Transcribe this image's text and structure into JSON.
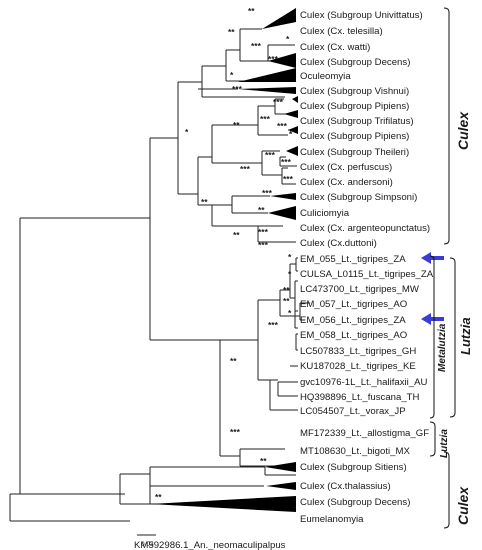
{
  "tree": {
    "taxa": {
      "t01": "Culex (Subgroup Univittatus)",
      "t02": "Culex (Cx. telesilla)",
      "t03": "Culex (Cx. watti)",
      "t04": "Culex (Subgroup Decens)",
      "t05": "Oculeomyia",
      "t06": "Culex (Subgroup Vishnui)",
      "t07": "Culex (Subgroup Pipiens)",
      "t08": "Culex (Subgroup Trifilatus)",
      "t09": "Culex (Subgroup Pipiens)",
      "t10": "Culex (Subgroup Theileri)",
      "t11": "Culex (Cx. perfuscus)",
      "t12": "Culex (Cx. andersoni)",
      "t13": "Culex (Subgroup Simpsoni)",
      "t14": "Culiciomyia",
      "t15": "Culex (Cx. argenteopunctatus)",
      "t16": "Culex (Cx.duttoni)",
      "t17": "EM_055_Lt._tigripes_ZA",
      "t18": "CULSA_L0115_Lt._tigripes_ZA",
      "t19": "LC473700_Lt._tigripes_MW",
      "t20": "EM_057_Lt._tigripes_AO",
      "t21": "EM_056_Lt._tigripes_ZA",
      "t22": "EM_058_Lt._tigripes_AO",
      "t23": "LC507833_Lt._tigripes_GH",
      "t24": "KU187028_Lt._tigripes_KE",
      "t25": "gvc10976-1L_Lt._halifaxii_AU",
      "t26": "HQ398896_Lt._fuscana_TH",
      "t27": "LC054507_Lt._vorax_JP",
      "t28": "MF172339_Lt._allostigma_GF",
      "t29": "MT108630_Lt._bigoti_MX",
      "t30": "Culex (Subgroup Sitiens)",
      "t31": "Culex (Cx.thalassius)",
      "t32": "Culex (Subgroup Decens)",
      "t33": "Eumelanomyia",
      "t34": "KM592986.1_An._neomaculipalpus"
    },
    "support": {
      "s01": "**",
      "s02": "**",
      "s03": "*",
      "s04": "***",
      "s05": "***",
      "s06": "*",
      "s07": "***",
      "s08": "*",
      "s09": "***",
      "s10": "***",
      "s11": "***",
      "s12": "*",
      "s13": "**",
      "s14": "***",
      "s15": "***",
      "s16": "***",
      "s17": "***",
      "s18": "**",
      "s19": "***",
      "s20": "**",
      "s21": "*",
      "s22": "*",
      "s23": "**",
      "s24": "**",
      "s25": "*",
      "s26": "***",
      "s27": "**",
      "s28": "***",
      "s29": "***",
      "s30": "**",
      "s31": "**",
      "s32": "***",
      "s33": "**"
    },
    "groups": {
      "culex_top": "Culex",
      "metalutzia": "Metalutzia",
      "lutzia_main": "Lutzia",
      "lutzia_small": "Lutzia",
      "culex_bottom": "Culex"
    },
    "scale_label": "0.03",
    "colors": {
      "arrow": "#3b3bd6",
      "branch": "#222222"
    }
  }
}
